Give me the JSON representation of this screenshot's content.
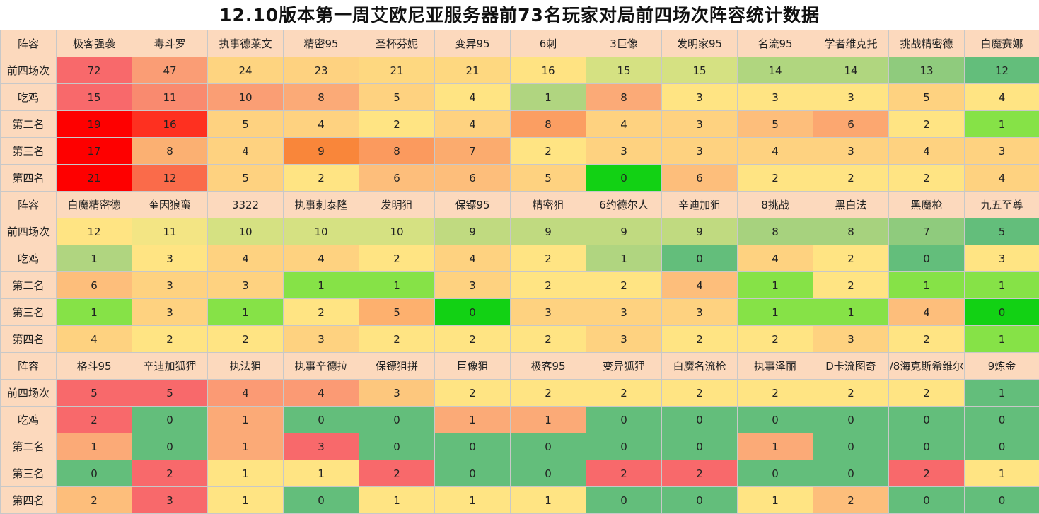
{
  "title": "12.10版本第一周艾欧尼亚服务器前73名玩家对局前四场次阵容统计数据",
  "blocks": [
    {
      "header_label": "阵容",
      "comps": [
        "极客强袭",
        "毒斗罗",
        "执事德莱文",
        "精密95",
        "圣杯芬妮",
        "变异95",
        "6刺",
        "3巨像",
        "发明家95",
        "名流95",
        "学者维克托",
        "挑战精密德",
        "白魔赛娜"
      ],
      "rows": [
        {
          "label": "前四场次",
          "values": [
            "72",
            "47",
            "24",
            "23",
            "21",
            "21",
            "16",
            "15",
            "15",
            "14",
            "14",
            "13",
            "12"
          ],
          "colors": [
            "#f8696b",
            "#fa9d75",
            "#fed480",
            "#fed280",
            "#fed880",
            "#fed880",
            "#ffe382",
            "#d5e182",
            "#d5e182",
            "#b0d67f",
            "#b0d67f",
            "#8fcb7d",
            "#63be7b"
          ]
        },
        {
          "label": "吃鸡",
          "values": [
            "15",
            "11",
            "10",
            "8",
            "5",
            "4",
            "1",
            "8",
            "3",
            "3",
            "3",
            "5",
            "4"
          ],
          "colors": [
            "#f8696b",
            "#f98a6f",
            "#fa9e74",
            "#fbaa77",
            "#fed280",
            "#ffe483",
            "#b0d580",
            "#fbaa77",
            "#ffe483",
            "#ffe483",
            "#ffe483",
            "#fed280",
            "#ffe483"
          ]
        },
        {
          "label": "第二名",
          "values": [
            "19",
            "16",
            "5",
            "4",
            "2",
            "4",
            "8",
            "4",
            "3",
            "5",
            "6",
            "2",
            "1"
          ],
          "colors": [
            "#fe0000",
            "#fe3020",
            "#fed280",
            "#fed280",
            "#ffe483",
            "#fed280",
            "#fb9e62",
            "#fed280",
            "#fed280",
            "#fdbe7b",
            "#fca770",
            "#ffe483",
            "#86e247"
          ]
        },
        {
          "label": "第三名",
          "values": [
            "17",
            "8",
            "4",
            "9",
            "8",
            "7",
            "2",
            "3",
            "3",
            "4",
            "3",
            "4",
            "3"
          ],
          "colors": [
            "#fe0000",
            "#fbb072",
            "#fed280",
            "#f9863a",
            "#fb9a5e",
            "#fbab6e",
            "#ffe483",
            "#fed280",
            "#fed280",
            "#fed280",
            "#fed280",
            "#fed280",
            "#fed280"
          ]
        },
        {
          "label": "第四名",
          "values": [
            "21",
            "12",
            "5",
            "2",
            "6",
            "6",
            "5",
            "0",
            "6",
            "2",
            "2",
            "2",
            "4"
          ],
          "colors": [
            "#fe0000",
            "#fa6b4a",
            "#fed280",
            "#ffe483",
            "#fdbe7b",
            "#fdbe7b",
            "#fed280",
            "#12d114",
            "#fdbe7b",
            "#ffe483",
            "#ffe483",
            "#ffe483",
            "#fed280"
          ]
        }
      ]
    },
    {
      "header_label": "阵容",
      "comps": [
        "白魔精密德",
        "奎因狼蛮",
        "3322",
        "执事刺泰隆",
        "发明狙",
        "保镖95",
        "精密狙",
        "6约德尔人",
        "辛迪加狙",
        "8挑战",
        "黑白法",
        "黑魔枪",
        "九五至尊"
      ],
      "rows": [
        {
          "label": "前四场次",
          "values": [
            "12",
            "11",
            "10",
            "10",
            "10",
            "9",
            "9",
            "9",
            "9",
            "8",
            "8",
            "7",
            "5"
          ],
          "colors": [
            "#ffe483",
            "#f3e584",
            "#d5e182",
            "#d5e182",
            "#d5e182",
            "#c0da80",
            "#c0da80",
            "#c0da80",
            "#c0da80",
            "#a7d27e",
            "#a7d27e",
            "#8fcb7d",
            "#63be7b"
          ]
        },
        {
          "label": "吃鸡",
          "values": [
            "1",
            "3",
            "4",
            "4",
            "2",
            "4",
            "2",
            "1",
            "0",
            "4",
            "2",
            "0",
            "3"
          ],
          "colors": [
            "#b0d580",
            "#ffe483",
            "#fed280",
            "#fed280",
            "#ffe483",
            "#fed280",
            "#ffe483",
            "#b0d580",
            "#63be7b",
            "#fed280",
            "#ffe483",
            "#63be7b",
            "#ffe483"
          ]
        },
        {
          "label": "第二名",
          "values": [
            "6",
            "3",
            "3",
            "1",
            "1",
            "3",
            "2",
            "2",
            "4",
            "1",
            "2",
            "1",
            "1"
          ],
          "colors": [
            "#fdbe7b",
            "#fed280",
            "#fed280",
            "#86e247",
            "#86e247",
            "#fed280",
            "#ffe483",
            "#ffe483",
            "#fdbe7b",
            "#86e247",
            "#ffe483",
            "#86e247",
            "#86e247"
          ]
        },
        {
          "label": "第三名",
          "values": [
            "1",
            "3",
            "1",
            "2",
            "5",
            "0",
            "3",
            "3",
            "3",
            "1",
            "1",
            "4",
            "0"
          ],
          "colors": [
            "#86e247",
            "#fed280",
            "#86e247",
            "#ffe483",
            "#fdb06e",
            "#12d114",
            "#fed280",
            "#fed280",
            "#fed280",
            "#86e247",
            "#86e247",
            "#fdbe7b",
            "#12d114"
          ]
        },
        {
          "label": "第四名",
          "values": [
            "4",
            "2",
            "2",
            "3",
            "2",
            "2",
            "2",
            "3",
            "2",
            "2",
            "3",
            "2",
            "1"
          ],
          "colors": [
            "#fed280",
            "#ffe483",
            "#ffe483",
            "#fed280",
            "#ffe483",
            "#ffe483",
            "#ffe483",
            "#fed280",
            "#ffe483",
            "#ffe483",
            "#fed280",
            "#ffe483",
            "#86e247"
          ]
        }
      ]
    },
    {
      "header_label": "阵容",
      "comps": [
        "格斗95",
        "辛迪加狐狸",
        "执法狙",
        "执事辛德拉",
        "保镖狙拼",
        "巨像狙",
        "极客95",
        "变异狐狸",
        "白魔名流枪",
        "执事泽丽",
        "D卡流图奇",
        "/8海克斯希维尔",
        "9炼金"
      ],
      "rows": [
        {
          "label": "前四场次",
          "values": [
            "5",
            "5",
            "4",
            "4",
            "3",
            "2",
            "2",
            "2",
            "2",
            "2",
            "2",
            "2",
            "1"
          ],
          "colors": [
            "#f8696b",
            "#f8696b",
            "#fb9a74",
            "#fb9a74",
            "#fdc77d",
            "#ffe483",
            "#ffe483",
            "#ffe483",
            "#ffe483",
            "#ffe483",
            "#ffe483",
            "#ffe483",
            "#63be7b"
          ]
        },
        {
          "label": "吃鸡",
          "values": [
            "2",
            "0",
            "1",
            "0",
            "0",
            "1",
            "1",
            "0",
            "0",
            "0",
            "0",
            "0",
            "0"
          ],
          "colors": [
            "#f8696b",
            "#63be7b",
            "#fbaa77",
            "#63be7b",
            "#63be7b",
            "#fbaa77",
            "#fbaa77",
            "#63be7b",
            "#63be7b",
            "#63be7b",
            "#63be7b",
            "#63be7b",
            "#63be7b"
          ]
        },
        {
          "label": "第二名",
          "values": [
            "1",
            "0",
            "1",
            "3",
            "0",
            "0",
            "0",
            "0",
            "0",
            "1",
            "0",
            "0",
            "0"
          ],
          "colors": [
            "#fbaa77",
            "#63be7b",
            "#fbaa77",
            "#f8696b",
            "#63be7b",
            "#63be7b",
            "#63be7b",
            "#63be7b",
            "#63be7b",
            "#fbaa77",
            "#63be7b",
            "#63be7b",
            "#63be7b"
          ]
        },
        {
          "label": "第三名",
          "values": [
            "0",
            "2",
            "1",
            "1",
            "2",
            "0",
            "0",
            "2",
            "2",
            "0",
            "0",
            "2",
            "1"
          ],
          "colors": [
            "#63be7b",
            "#f8696b",
            "#ffe483",
            "#ffe483",
            "#f8696b",
            "#63be7b",
            "#63be7b",
            "#f8696b",
            "#f8696b",
            "#63be7b",
            "#63be7b",
            "#f8696b",
            "#ffe483"
          ]
        },
        {
          "label": "第四名",
          "values": [
            "2",
            "3",
            "1",
            "0",
            "1",
            "1",
            "1",
            "0",
            "0",
            "1",
            "2",
            "0",
            "0"
          ],
          "colors": [
            "#fdbe7b",
            "#f8696b",
            "#ffe483",
            "#63be7b",
            "#ffe483",
            "#ffe483",
            "#ffe483",
            "#63be7b",
            "#63be7b",
            "#ffe483",
            "#fdbe7b",
            "#63be7b",
            "#63be7b"
          ]
        }
      ]
    }
  ]
}
